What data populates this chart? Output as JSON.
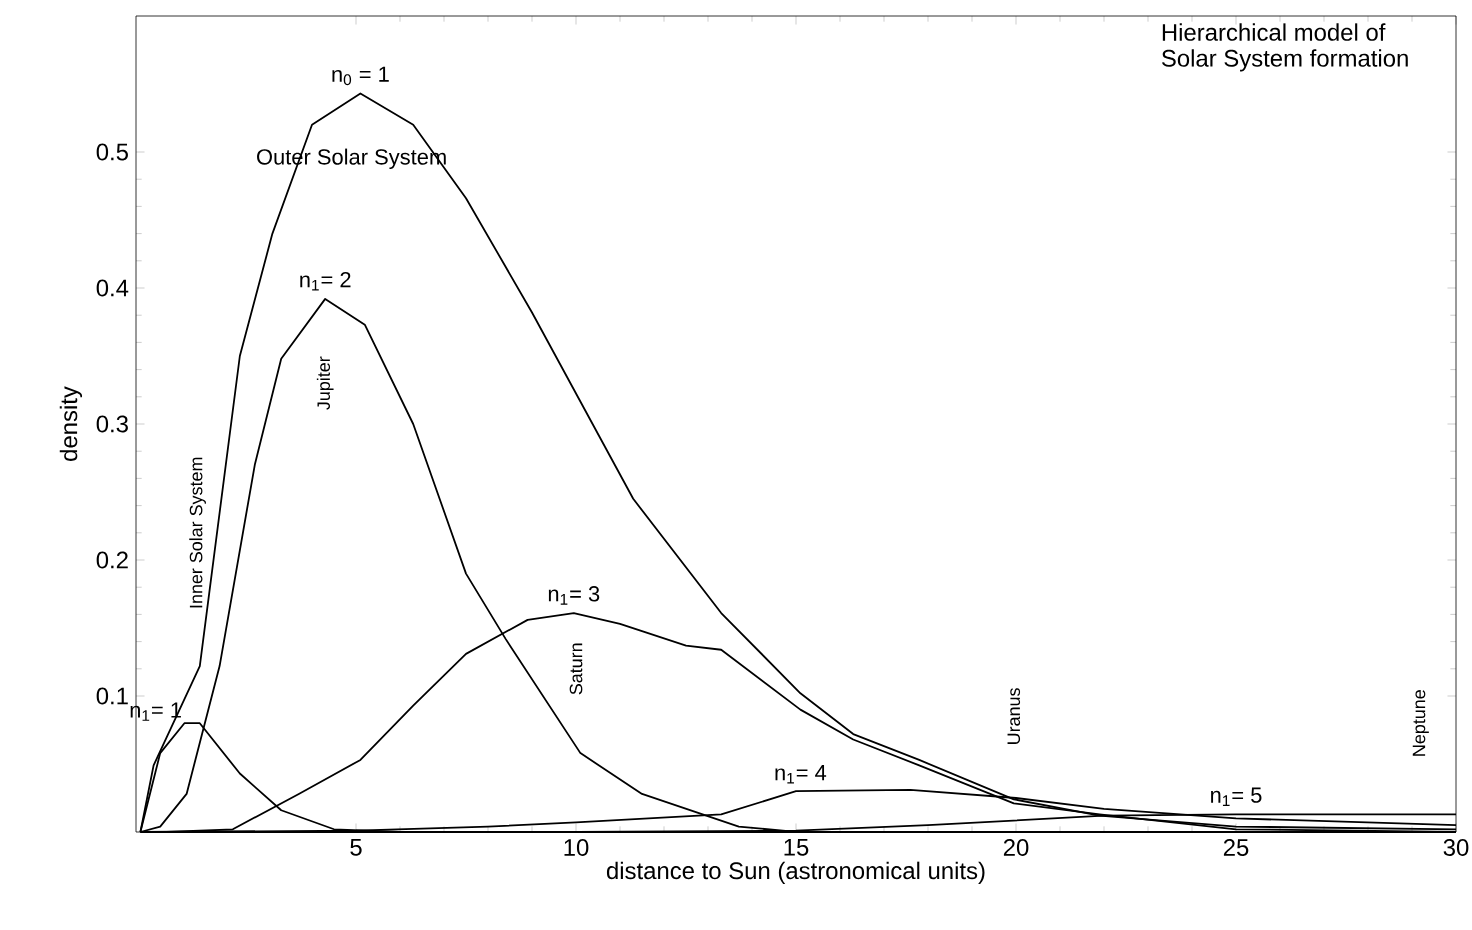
{
  "chart_data": {
    "type": "line",
    "title": "Hierarchical model of\nSolar System formation",
    "xlabel": "distance to Sun (astronomical units)",
    "ylabel": "density",
    "xlim": [
      0,
      30
    ],
    "ylim": [
      0,
      0.6
    ],
    "xticks": [
      5,
      10,
      15,
      20,
      25,
      30
    ],
    "yticks": [
      0.1,
      0.2,
      0.3,
      0.4,
      0.5
    ],
    "series": [
      {
        "name": "n$_{0}$ = 1",
        "color": "#000000",
        "x": [
          0.1,
          0.4,
          1.45,
          2.36,
          3.1,
          4.0,
          5.1,
          6.3,
          7.5,
          9.0,
          11.3,
          13.3,
          15.1,
          16.3,
          17.8,
          19.95,
          21.9,
          25,
          30
        ],
        "values": [
          0,
          0.049,
          0.122,
          0.35,
          0.44,
          0.52,
          0.543,
          0.52,
          0.466,
          0.382,
          0.245,
          0.161,
          0.102,
          0.072,
          0.053,
          0.024,
          0.012,
          0.004,
          0.002
        ]
      },
      {
        "name": "n$_{1}$= 2",
        "color": "#000000",
        "x": [
          0.1,
          0.55,
          1.15,
          1.9,
          2.7,
          3.3,
          4.3,
          5.2,
          6.3,
          7.5,
          8.4,
          10.1,
          11.5,
          13.7,
          15,
          20,
          30
        ],
        "values": [
          0,
          0.004,
          0.028,
          0.122,
          0.27,
          0.348,
          0.392,
          0.373,
          0.3,
          0.19,
          0.142,
          0.058,
          0.028,
          0.004,
          0,
          0,
          0
        ]
      },
      {
        "name": "n$_{1}$= 1",
        "color": "#000000",
        "x": [
          0.1,
          0.55,
          1.1,
          1.45,
          2.36,
          3.3,
          4.5,
          6,
          10,
          20,
          30
        ],
        "values": [
          0,
          0.058,
          0.08,
          0.08,
          0.043,
          0.016,
          0.002,
          0,
          0,
          0,
          0
        ]
      },
      {
        "name": "n$_{1}$= 3",
        "color": "#000000",
        "x": [
          0.7,
          2.2,
          3.7,
          5.1,
          6.3,
          7.5,
          8.9,
          9.95,
          11,
          12.5,
          13.3,
          15.1,
          16.3,
          17.8,
          19.95,
          21.9,
          25,
          30
        ],
        "values": [
          0,
          0.002,
          0.028,
          0.053,
          0.093,
          0.131,
          0.156,
          0.161,
          0.153,
          0.137,
          0.134,
          0.09,
          0.068,
          0.049,
          0.021,
          0.013,
          0.002,
          0
        ]
      },
      {
        "name": "n$_{1}$= 4",
        "color": "#000000",
        "x": [
          0.1,
          5,
          8,
          10,
          13.3,
          15,
          17.6,
          20,
          22,
          25,
          30
        ],
        "values": [
          0,
          0.001,
          0.004,
          0.007,
          0.013,
          0.03,
          0.031,
          0.025,
          0.017,
          0.01,
          0.005
        ]
      },
      {
        "name": "n$_{1}$= 5",
        "color": "#000000",
        "x": [
          0.1,
          10,
          15,
          18,
          22,
          25,
          30
        ],
        "values": [
          0,
          0,
          0.001,
          0.005,
          0.012,
          0.013,
          0.013
        ]
      }
    ],
    "annotations": [
      "Outer Solar System",
      "Jupiter",
      "Inner Solar System",
      "Saturn",
      "Uranus",
      "Neptune"
    ]
  }
}
